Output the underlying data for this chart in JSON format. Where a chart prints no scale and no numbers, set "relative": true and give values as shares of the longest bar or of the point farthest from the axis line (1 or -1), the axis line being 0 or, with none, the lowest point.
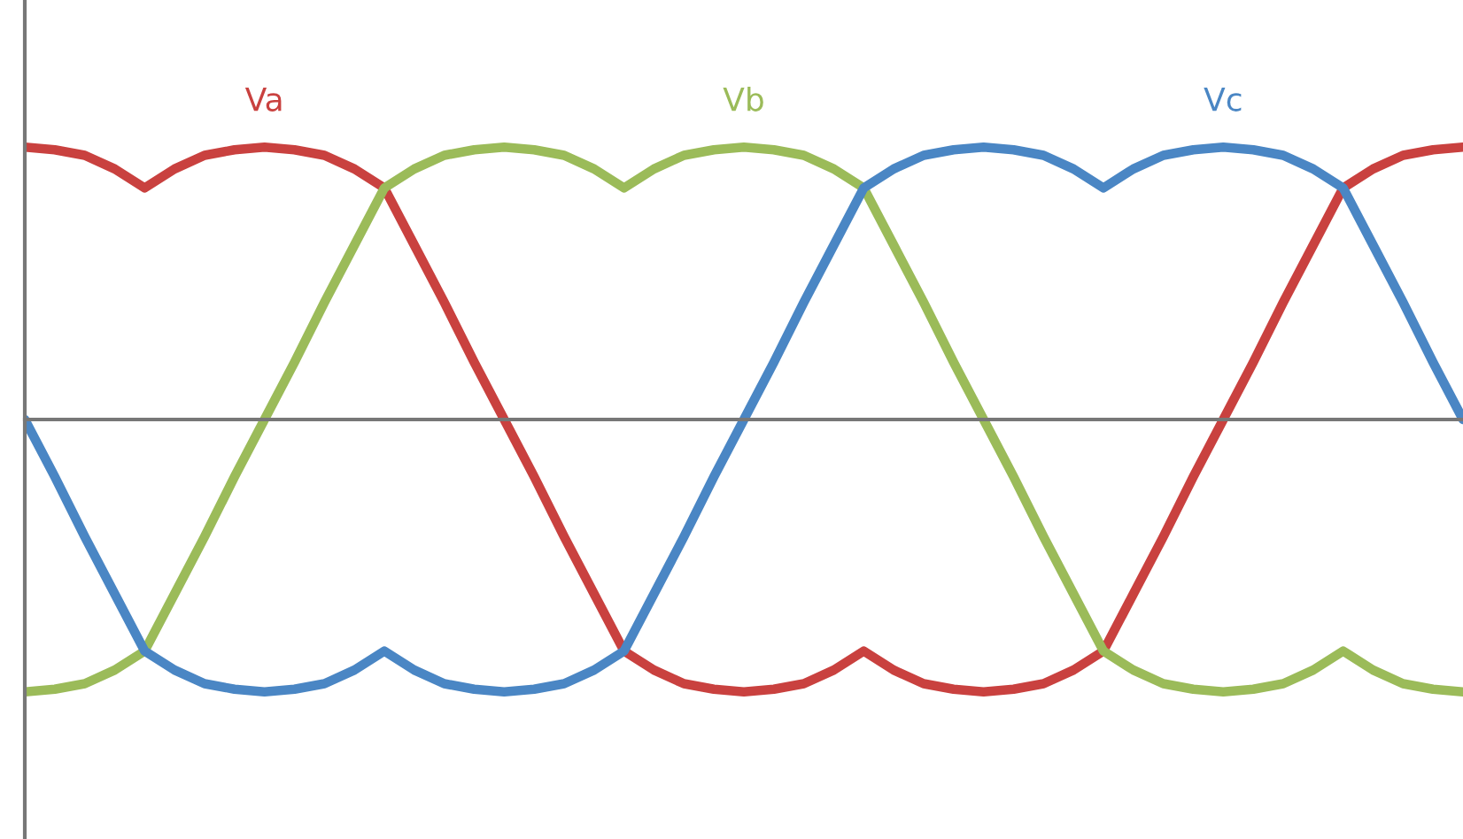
{
  "chart_data": {
    "type": "line",
    "relative": true,
    "legend": false,
    "marker": "none",
    "line_style": "solid",
    "categories": [
      null,
      null,
      null,
      null,
      null,
      null,
      null,
      null,
      null,
      null,
      null,
      null,
      null,
      null,
      null,
      null,
      null,
      null,
      null,
      null,
      null,
      null,
      null,
      null,
      null,
      null,
      null,
      null,
      null,
      null,
      null,
      null,
      null,
      null,
      null,
      null,
      null,
      null,
      null,
      null,
      null,
      null,
      null,
      null,
      null,
      null,
      null,
      null,
      null
    ],
    "series": [
      {
        "name": "Va",
        "color": "#c9413f",
        "values": [
          1,
          0.99,
          0.97,
          0.92,
          0.85,
          0.92,
          0.97,
          0.99,
          1,
          0.99,
          0.97,
          0.92,
          0.85,
          0.64,
          0.43,
          0.21,
          0,
          -0.21,
          -0.43,
          -0.64,
          -0.85,
          -0.92,
          -0.97,
          -0.99,
          -1,
          -0.99,
          -0.97,
          -0.92,
          -0.85,
          -0.92,
          -0.97,
          -0.99,
          -1,
          -0.99,
          -0.97,
          -0.92,
          -0.85,
          -0.64,
          -0.43,
          -0.21,
          0,
          0.21,
          0.43,
          0.64,
          0.85,
          0.92,
          0.97,
          0.99,
          1
        ]
      },
      {
        "name": "Vb",
        "color": "#9bbb59",
        "values": [
          -1,
          -0.99,
          -0.97,
          -0.92,
          -0.85,
          -0.64,
          -0.43,
          -0.21,
          0,
          0.21,
          0.43,
          0.64,
          0.85,
          0.92,
          0.97,
          0.99,
          1,
          0.99,
          0.97,
          0.92,
          0.85,
          0.92,
          0.97,
          0.99,
          1,
          0.99,
          0.97,
          0.92,
          0.85,
          0.64,
          0.43,
          0.21,
          0,
          -0.21,
          -0.43,
          -0.64,
          -0.85,
          -0.92,
          -0.97,
          -0.99,
          -1,
          -0.99,
          -0.97,
          -0.92,
          -0.85,
          -0.92,
          -0.97,
          -0.99,
          -1
        ]
      },
      {
        "name": "Vc",
        "color": "#4a86c4",
        "values": [
          0,
          -0.21,
          -0.43,
          -0.64,
          -0.85,
          -0.92,
          -0.97,
          -0.99,
          -1,
          -0.99,
          -0.97,
          -0.92,
          -0.85,
          -0.92,
          -0.97,
          -0.99,
          -1,
          -0.99,
          -0.97,
          -0.92,
          -0.85,
          -0.64,
          -0.43,
          -0.21,
          0,
          0.21,
          0.43,
          0.64,
          0.85,
          0.92,
          0.97,
          0.99,
          1,
          0.99,
          0.97,
          0.92,
          0.85,
          0.92,
          0.97,
          0.99,
          1,
          0.99,
          0.97,
          0.92,
          0.85,
          0.64,
          0.43,
          0.21,
          0
        ]
      }
    ]
  }
}
